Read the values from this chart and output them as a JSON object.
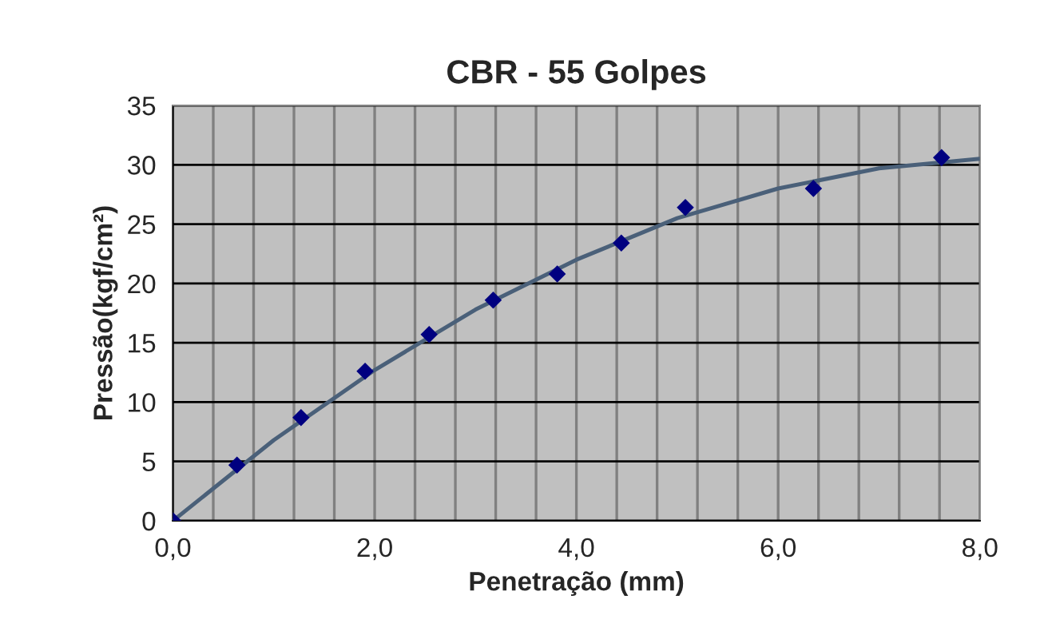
{
  "chart_data": {
    "type": "scatter",
    "title": "CBR - 55 Golpes",
    "xlabel": "Penetração (mm)",
    "ylabel": "Pressão(kgf/cm²)",
    "xlim": [
      0,
      8
    ],
    "ylim": [
      0,
      35
    ],
    "xticks": [
      {
        "value": 0,
        "label": "0,0"
      },
      {
        "value": 0.4,
        "label": null
      },
      {
        "value": 0.8,
        "label": null
      },
      {
        "value": 1.2,
        "label": null
      },
      {
        "value": 1.6,
        "label": null
      },
      {
        "value": 2,
        "label": "2,0"
      },
      {
        "value": 2.4,
        "label": null
      },
      {
        "value": 2.8,
        "label": null
      },
      {
        "value": 3.2,
        "label": null
      },
      {
        "value": 3.6,
        "label": null
      },
      {
        "value": 4,
        "label": "4,0"
      },
      {
        "value": 4.4,
        "label": null
      },
      {
        "value": 4.8,
        "label": null
      },
      {
        "value": 5.2,
        "label": null
      },
      {
        "value": 5.6,
        "label": null
      },
      {
        "value": 6,
        "label": "6,0"
      },
      {
        "value": 6.4,
        "label": null
      },
      {
        "value": 6.8,
        "label": null
      },
      {
        "value": 7.2,
        "label": null
      },
      {
        "value": 7.6,
        "label": null
      },
      {
        "value": 8,
        "label": "8,0"
      }
    ],
    "yticks": [
      0,
      5,
      10,
      15,
      20,
      25,
      30,
      35
    ],
    "grid": true,
    "series": [
      {
        "type": "line",
        "color": "#4a6079",
        "marker": "none",
        "line_style": "solid",
        "x": [
          0,
          1,
          2,
          3,
          4,
          5,
          6,
          7,
          8
        ],
        "values": [
          0,
          6.8,
          12.7,
          17.8,
          22.0,
          25.5,
          28.0,
          29.7,
          30.5
        ]
      },
      {
        "color": "#000080",
        "marker": "diamond",
        "x": [
          0,
          0.635,
          1.27,
          1.905,
          2.54,
          3.175,
          3.81,
          4.445,
          5.08,
          6.35,
          7.62
        ],
        "values": [
          0,
          4.7,
          8.7,
          12.6,
          15.7,
          18.6,
          20.8,
          23.4,
          26.4,
          28.0,
          30.6
        ]
      }
    ]
  }
}
